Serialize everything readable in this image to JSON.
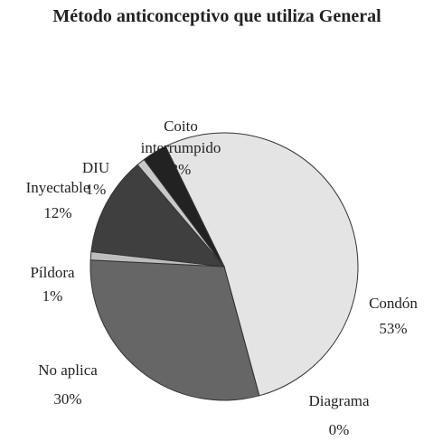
{
  "chart_data": {
    "type": "pie",
    "title": "Método anticonceptivo que utiliza General",
    "categories": [
      "Condón",
      "Diagrama",
      "No aplica",
      "Píldora",
      "Inyectable",
      "DIU",
      "Coito interrumpido"
    ],
    "values": [
      53,
      0,
      30,
      1,
      12,
      1,
      3
    ],
    "value_labels": [
      "53%",
      "0%",
      "30%",
      "1%",
      "12%",
      "1%",
      "3%"
    ],
    "colors": [
      "#e4e4e4",
      "#f0f0f0",
      "#666666",
      "#bdbdbd",
      "#3f3f3f",
      "#c9c9c9",
      "#222222"
    ]
  }
}
